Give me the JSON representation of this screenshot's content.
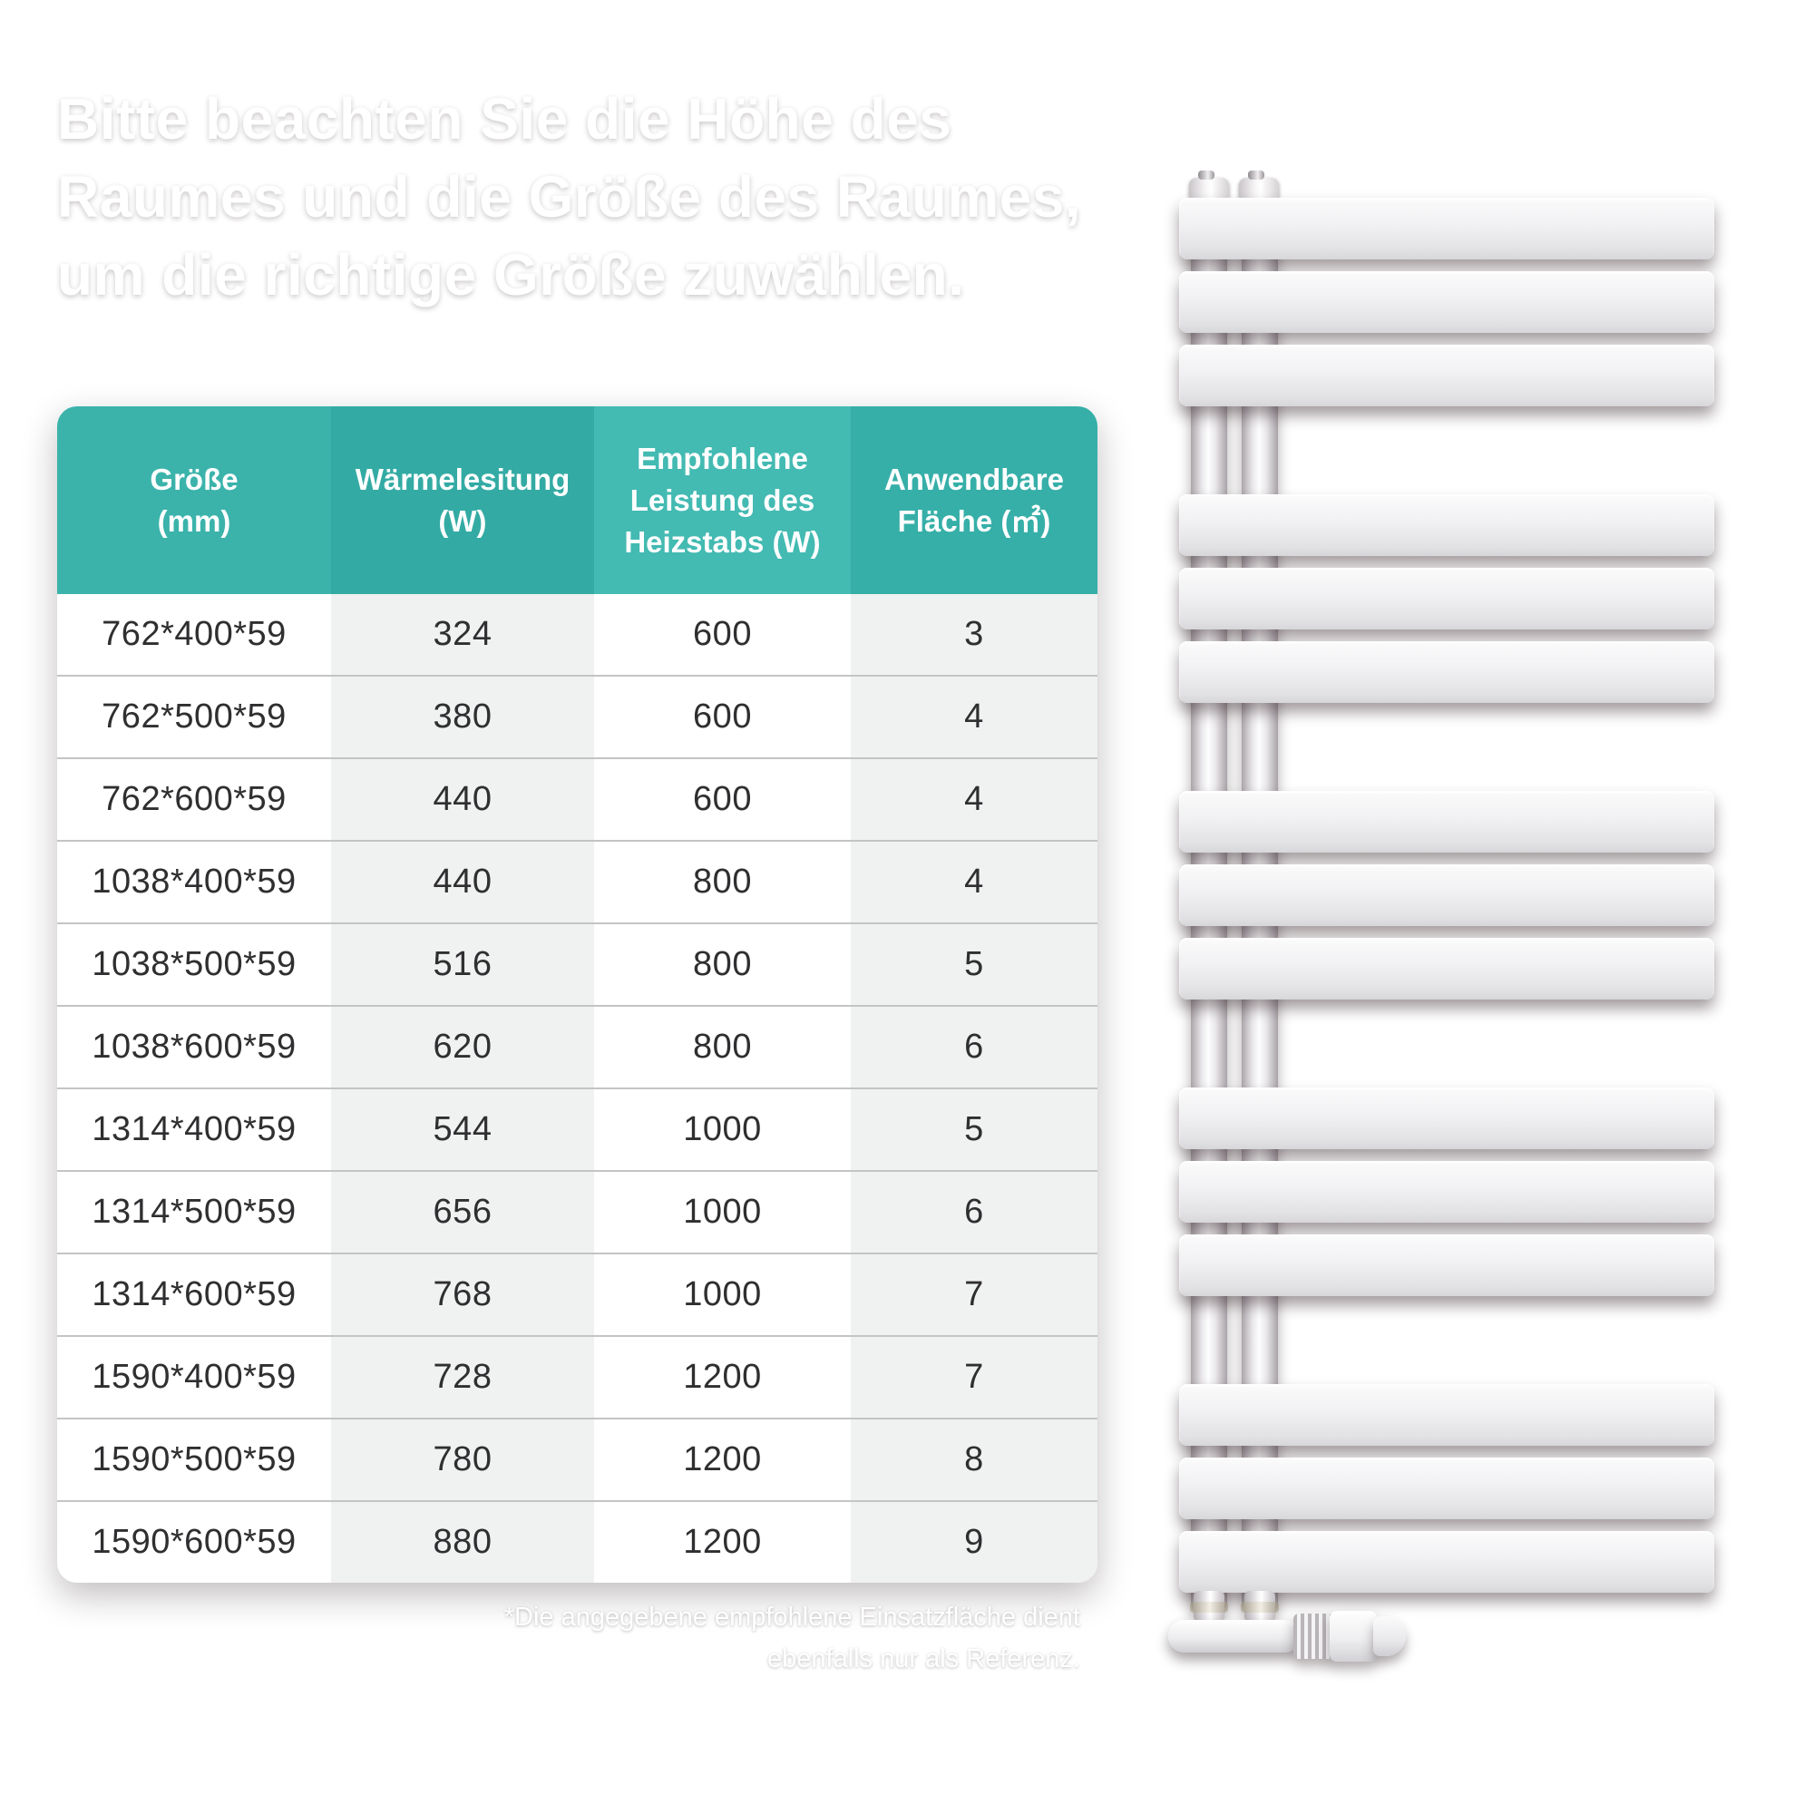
{
  "title": {
    "lines": [
      "Bitte beachten Sie die Höhe des",
      "Raumes und die Größe des Raumes,",
      "um die richtige Größe zuwählen."
    ]
  },
  "table": {
    "columns": [
      {
        "lines": [
          "Größe",
          "(mm)"
        ]
      },
      {
        "lines": [
          "Wärmelesitung",
          "(W)"
        ]
      },
      {
        "lines": [
          "Empfohlene",
          "Leistung des",
          "Heizstabs  (W)"
        ]
      },
      {
        "lines": [
          "Anwendbare",
          "Fläche  (㎡)"
        ]
      }
    ],
    "rows": [
      [
        "762*400*59",
        "324",
        "600",
        "3"
      ],
      [
        "762*500*59",
        "380",
        "600",
        "4"
      ],
      [
        "762*600*59",
        "440",
        "600",
        "4"
      ],
      [
        "1038*400*59",
        "440",
        "800",
        "4"
      ],
      [
        "1038*500*59",
        "516",
        "800",
        "5"
      ],
      [
        "1038*600*59",
        "620",
        "800",
        "6"
      ],
      [
        "1314*400*59",
        "544",
        "1000",
        "5"
      ],
      [
        "1314*500*59",
        "656",
        "1000",
        "6"
      ],
      [
        "1314*600*59",
        "768",
        "1000",
        "7"
      ],
      [
        "1590*400*59",
        "728",
        "1200",
        "7"
      ],
      [
        "1590*500*59",
        "780",
        "1200",
        "8"
      ],
      [
        "1590*600*59",
        "880",
        "1200",
        "9"
      ]
    ]
  },
  "footnote": {
    "lines": [
      "*Die angegebene empfohlene Einsatzfläche dient",
      "ebenfalls nur als Referenz."
    ]
  },
  "radiator": {
    "description": "white flat-panel towel radiator, 5 groups of 3 bars, bottom valve with thermostat head"
  },
  "colors": {
    "background_left": "#8c797e",
    "background_right": "#5a4649",
    "title_text": "#ffffff",
    "header_text": "#ffffff",
    "header_col1": "#3bb3ab",
    "header_col2": "#33aba4",
    "header_col3": "#43bab2",
    "header_col4": "#36afa8",
    "cell_text": "#2f2f31",
    "col_stripe": "#f0f1f1",
    "row_divider": "#c4c4c6",
    "radiator_white": "#f0f0f2"
  }
}
